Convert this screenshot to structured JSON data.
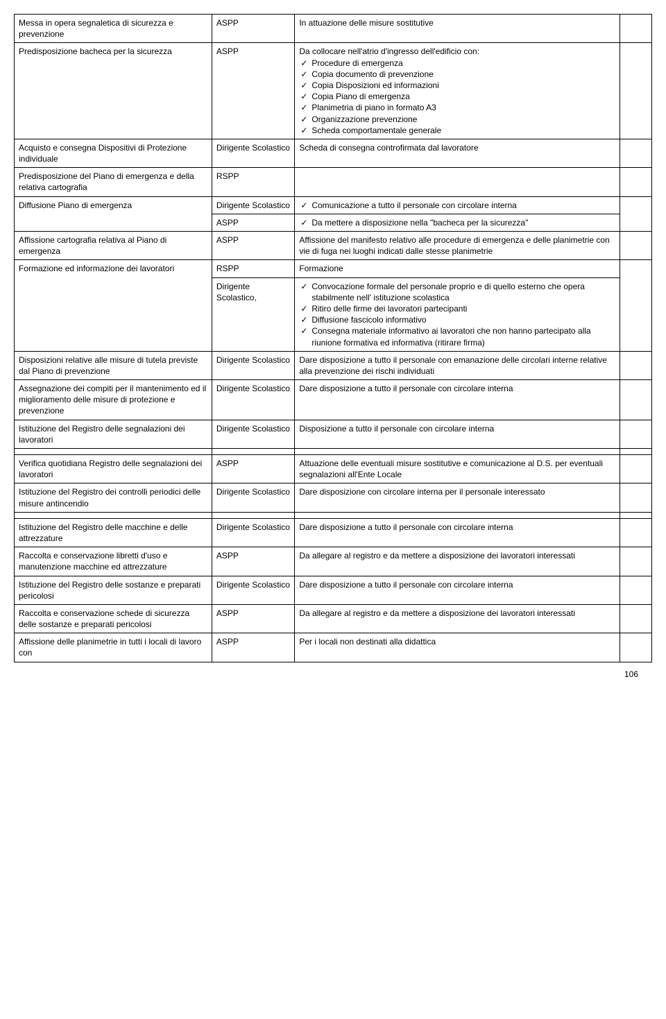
{
  "rows": [
    {
      "c1": "Messa in opera segnaletica di sicurezza e prevenzione",
      "c2": "ASPP",
      "c3": "In attuazione delle misure sostitutive",
      "c3_type": "text"
    },
    {
      "c1": "Predisposizione bacheca per la sicurezza",
      "c2": "ASPP",
      "c3_lead": "Da collocare nell'atrio d'ingresso dell'edificio con:",
      "c3_items": [
        "Procedure di emergenza",
        "Copia documento di prevenzione",
        "Copia Disposizioni ed informazioni",
        "Copia Piano di emergenza",
        "Planimetria di piano in formato A3",
        "Organizzazione prevenzione",
        "Scheda comportamentale generale"
      ],
      "c3_type": "lead_list"
    },
    {
      "c1": "Acquisto e consegna Dispositivi di Protezione individuale",
      "c2": "Dirigente Scolastico",
      "c3": "Scheda di consegna controfirmata dal lavoratore",
      "c3_type": "text"
    },
    {
      "c1": "Predisposizione del Piano di emergenza e della relativa cartografia",
      "c2": "RSPP",
      "c3": "",
      "c3_type": "text"
    },
    {
      "c1": "Diffusione Piano di emergenza",
      "c1_rowspan": 2,
      "c2": "Dirigente Scolastico",
      "c3_items": [
        "Comunicazione a tutto il personale con circolare interna"
      ],
      "c3_type": "list"
    },
    {
      "c2": "ASPP",
      "c3_items": [
        "Da mettere a disposizione nella \"bacheca per la sicurezza\""
      ],
      "c3_type": "list"
    },
    {
      "c1": "Affissione cartografia relativa al Piano di emergenza",
      "c2": "ASPP",
      "c3": "Affissione del manifesto relativo alle procedure di emergenza e delle planimetrie con vie di fuga nei luoghi indicati dalle stesse planimetrie",
      "c3_type": "text"
    },
    {
      "c1": "Formazione ed informazione dei lavoratori",
      "c1_rowspan": 2,
      "c2": "RSPP",
      "c3": "Formazione",
      "c3_type": "text"
    },
    {
      "c2": "Dirigente Scolastico,",
      "c3_items": [
        "Convocazione formale del personale  proprio e di quello esterno che opera stabilmente nell' istituzione scolastica",
        "Ritiro delle firme dei lavoratori partecipanti",
        "Diffusione fascicolo informativo",
        "Consegna materiale informativo ai lavoratori che non hanno partecipato alla riunione formativa ed informativa (ritirare firma)"
      ],
      "c3_type": "list"
    },
    {
      "c1": "Disposizioni relative alle misure di tutela previste dal Piano di prevenzione",
      "c2": "Dirigente Scolastico",
      "c3": "Dare disposizione a tutto il personale con emanazione delle circolari interne relative alla prevenzione dei rischi individuati",
      "c3_type": "text"
    },
    {
      "c1": "Assegnazione dei compiti per il mantenimento ed il miglioramento delle misure di protezione e prevenzione",
      "c2": "Dirigente Scolastico",
      "c3": "Dare disposizione a tutto il personale con circolare interna",
      "c3_type": "text"
    },
    {
      "c1": "Istituzione del Registro delle segnalazioni dei lavoratori",
      "c2": "Dirigente Scolastico",
      "c3": "Disposizione a tutto il personale con circolare interna",
      "c3_type": "text"
    },
    {
      "c1": "",
      "c2": "",
      "c3": "",
      "c3_type": "text"
    },
    {
      "c1": "Verifica quotidiana Registro delle segnalazioni dei lavoratori",
      "c2": "ASPP",
      "c3": "Attuazione delle eventuali misure sostitutive e comunicazione al D.S. per eventuali segnalazioni all'Ente Locale",
      "c3_type": "text"
    },
    {
      "c1": "Istituzione del Registro dei controlli periodici delle misure antincendio",
      "c2": "Dirigente Scolastico",
      "c3": "Dare disposizione con circolare interna per il personale interessato",
      "c3_type": "text"
    },
    {
      "c1": "",
      "c2": "",
      "c3": "",
      "c3_type": "text"
    },
    {
      "c1": "Istituzione del Registro delle macchine e delle attrezzature",
      "c2": "Dirigente Scolastico",
      "c3": "Dare disposizione a tutto il personale con circolare interna",
      "c3_type": "text"
    },
    {
      "c1": "Raccolta e conservazione libretti d'uso e manutenzione macchine ed attrezzature",
      "c2": "ASPP",
      "c3": "Da allegare al registro e da mettere a disposizione dei lavoratori interessati",
      "c3_type": "text"
    },
    {
      "c1": "Istituzione del Registro delle sostanze e preparati pericolosi",
      "c2": "Dirigente Scolastico",
      "c3": "Dare disposizione a tutto il personale con circolare interna",
      "c3_type": "text"
    },
    {
      "c1": "Raccolta e conservazione schede di sicurezza delle sostanze e preparati pericolosi",
      "c2": "ASPP",
      "c3": "Da allegare al registro e da mettere a disposizione dei lavoratori interessati",
      "c3_type": "text"
    },
    {
      "c1": "Affissione delle planimetrie in tutti i locali di lavoro con",
      "c2": "ASPP",
      "c3": "Per i locali non destinati alla didattica",
      "c3_type": "text"
    }
  ],
  "page_number": "106"
}
